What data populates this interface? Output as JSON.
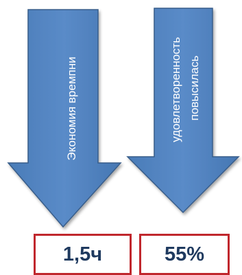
{
  "arrows": [
    {
      "label_lines": [
        "Экономия времпни"
      ]
    },
    {
      "label_lines": [
        "удовлетворенность",
        "повысилась"
      ]
    }
  ],
  "values": [
    {
      "text": "1,5ч"
    },
    {
      "text": "55%"
    }
  ],
  "colors": {
    "arrow_fill": "#4f81bd",
    "arrow_stroke": "#385d8a",
    "box_border": "#c0272d",
    "value_text": "#1f3a5f"
  }
}
